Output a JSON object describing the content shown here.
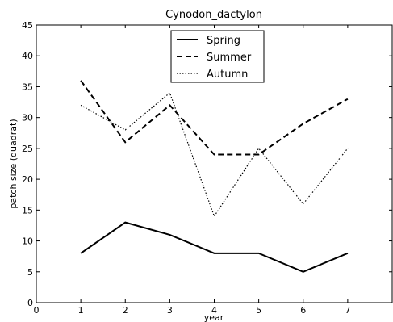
{
  "chart_data": {
    "type": "line",
    "title": "Cynodon_dactylon",
    "xlabel": "year",
    "ylabel": "patch size (quadrat)",
    "xlim": [
      0,
      8
    ],
    "ylim": [
      0,
      45
    ],
    "x_ticks": [
      0,
      1,
      2,
      3,
      4,
      5,
      6,
      7
    ],
    "y_ticks": [
      0,
      5,
      10,
      15,
      20,
      25,
      30,
      35,
      40,
      45
    ],
    "x": [
      1,
      2,
      3,
      4,
      5,
      6,
      7
    ],
    "series": [
      {
        "name": "Spring",
        "values": [
          8,
          13,
          11,
          8,
          8,
          5,
          8
        ],
        "line_style": "solid"
      },
      {
        "name": "Summer",
        "values": [
          36,
          26,
          32,
          24,
          24,
          29,
          33
        ],
        "line_style": "dashed"
      },
      {
        "name": "Autumn",
        "values": [
          32,
          28,
          34,
          14,
          25,
          16,
          25
        ],
        "line_style": "dotted"
      }
    ],
    "legend_position": "top-center",
    "grid": false,
    "color": "#000000"
  }
}
